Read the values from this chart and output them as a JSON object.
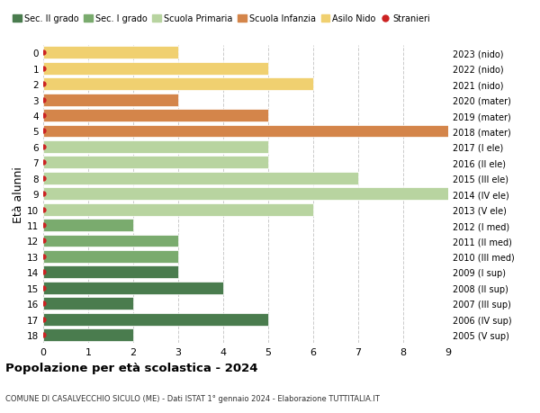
{
  "ages": [
    18,
    17,
    16,
    15,
    14,
    13,
    12,
    11,
    10,
    9,
    8,
    7,
    6,
    5,
    4,
    3,
    2,
    1,
    0
  ],
  "years": [
    "2005 (V sup)",
    "2006 (IV sup)",
    "2007 (III sup)",
    "2008 (II sup)",
    "2009 (I sup)",
    "2010 (III med)",
    "2011 (II med)",
    "2012 (I med)",
    "2013 (V ele)",
    "2014 (IV ele)",
    "2015 (III ele)",
    "2016 (II ele)",
    "2017 (I ele)",
    "2018 (mater)",
    "2019 (mater)",
    "2020 (mater)",
    "2021 (nido)",
    "2022 (nido)",
    "2023 (nido)"
  ],
  "values": [
    2,
    5,
    2,
    4,
    3,
    3,
    3,
    2,
    6,
    9,
    7,
    5,
    5,
    9,
    5,
    3,
    6,
    5,
    3
  ],
  "bar_colors": [
    "#4a7c4e",
    "#4a7c4e",
    "#4a7c4e",
    "#4a7c4e",
    "#4a7c4e",
    "#7aab6e",
    "#7aab6e",
    "#7aab6e",
    "#b8d4a0",
    "#b8d4a0",
    "#b8d4a0",
    "#b8d4a0",
    "#b8d4a0",
    "#d4854a",
    "#d4854a",
    "#d4854a",
    "#f0d070",
    "#f0d070",
    "#f0d070"
  ],
  "stranieri_color": "#cc2222",
  "legend_categories": [
    "Sec. II grado",
    "Sec. I grado",
    "Scuola Primaria",
    "Scuola Infanzia",
    "Asilo Nido",
    "Stranieri"
  ],
  "legend_colors": [
    "#4a7c4e",
    "#7aab6e",
    "#b8d4a0",
    "#d4854a",
    "#f0d070",
    "#cc2222"
  ],
  "title": "Popolazione per età scolastica - 2024",
  "subtitle": "COMUNE DI CASALVECCHIO SICULO (ME) - Dati ISTAT 1° gennaio 2024 - Elaborazione TUTTITALIA.IT",
  "ylabel_left": "Età alunni",
  "xlim": [
    0,
    9
  ],
  "bg_color": "#ffffff",
  "grid_color": "#cccccc",
  "bar_height": 0.8
}
